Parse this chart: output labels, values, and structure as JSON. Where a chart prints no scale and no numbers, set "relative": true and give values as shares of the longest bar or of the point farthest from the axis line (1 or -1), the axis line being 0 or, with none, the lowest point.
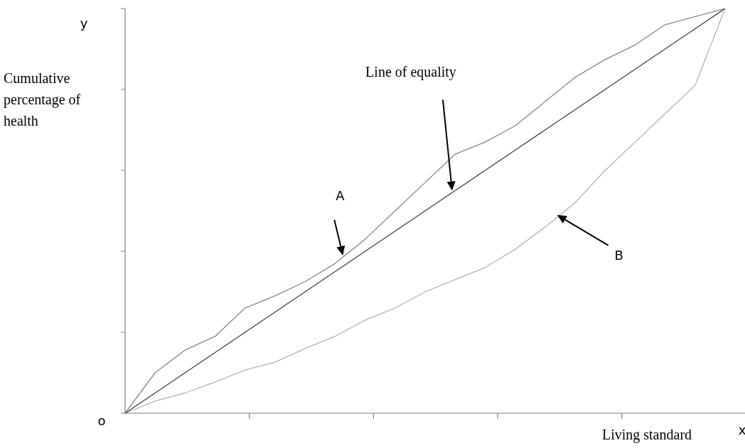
{
  "chart_data": {
    "type": "line",
    "relative": true,
    "xlabel": "Living standard",
    "ylabel": "Cumulative percentage of health",
    "categories": [
      null,
      null,
      null,
      null,
      null,
      null,
      null,
      null,
      null,
      null,
      null,
      null,
      null,
      null,
      null,
      null,
      null,
      null,
      null,
      null,
      null
    ],
    "series": [
      {
        "color": "#404040",
        "values": [
          0,
          0.05,
          0.1,
          0.15,
          0.2,
          0.25,
          0.3,
          0.35,
          0.4,
          0.45,
          0.5,
          0.55,
          0.6,
          0.65,
          0.7,
          0.75,
          0.8,
          0.85,
          0.9,
          0.95,
          1
        ]
      },
      {
        "color": "#888888",
        "values": [
          0,
          0.1,
          0.156,
          0.19,
          0.26,
          0.29,
          0.325,
          0.37,
          0.43,
          0.5,
          0.57,
          0.64,
          0.67,
          0.71,
          0.77,
          0.83,
          0.874,
          0.91,
          0.96,
          0.98,
          1
        ]
      },
      {
        "color": "#b4b4b4",
        "values": [
          0,
          0.03,
          0.05,
          0.077,
          0.107,
          0.126,
          0.16,
          0.19,
          0.23,
          0.26,
          0.3,
          0.33,
          0.36,
          0.405,
          0.46,
          0.52,
          0.6,
          0.67,
          0.74,
          0.81,
          1
        ]
      }
    ],
    "annotations": [
      "Line of equality",
      "A",
      "B",
      "y",
      "o",
      "x"
    ],
    "legend": false,
    "marker": "none",
    "line_style": "solid"
  }
}
